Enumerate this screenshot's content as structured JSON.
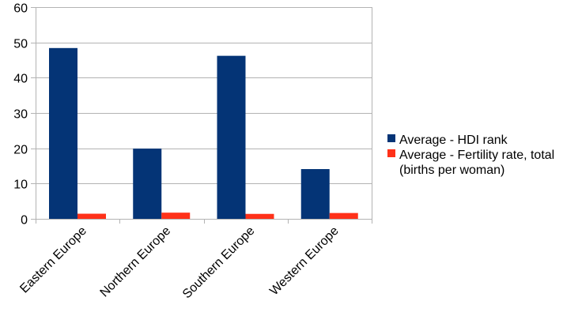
{
  "chart_data": {
    "type": "bar",
    "categories": [
      "Eastern Europe",
      "Northern Europe",
      "Southern Europe",
      "Western Europe"
    ],
    "series": [
      {
        "name": "Average - HDI rank",
        "legend_lines": [
          "Average - HDI rank"
        ],
        "color": "#043476",
        "values": [
          48.4,
          19.9,
          46.2,
          14.1
        ]
      },
      {
        "name": "Average - Fertility rate, total (births per woman)",
        "legend_lines": [
          "Average - Fertility rate, total",
          "(births per woman)"
        ],
        "color": "#ff3119",
        "values": [
          1.45,
          1.75,
          1.4,
          1.65
        ]
      }
    ],
    "yticks": [
      0,
      10,
      20,
      30,
      40,
      50,
      60
    ],
    "ylim": [
      0,
      60
    ],
    "grid": true,
    "gridline_color": "#b3b3b3",
    "legend_position": "right"
  }
}
